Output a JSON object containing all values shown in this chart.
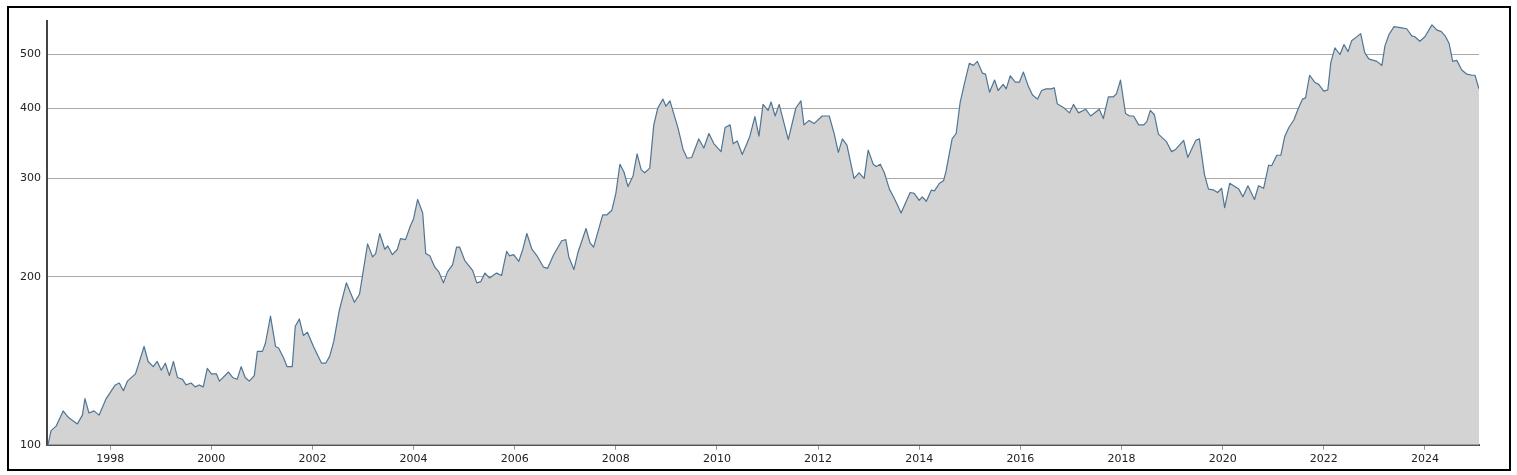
{
  "chart_data": {
    "type": "area",
    "log": "y",
    "grid": "y",
    "marker": "none",
    "legend": false,
    "xlim": [
      1996.75,
      2025.07
    ],
    "xticks": [
      1998,
      2000,
      2002,
      2004,
      2006,
      2008,
      2010,
      2012,
      2014,
      2016,
      2018,
      2020,
      2022,
      2024
    ],
    "ylim": [
      100,
      575
    ],
    "yticks": [
      100,
      200,
      300,
      400,
      500
    ],
    "series": [
      {
        "color": "#4f7595",
        "x": [
          1996.77,
          1996.83,
          1996.93,
          1997.07,
          1997.17,
          1997.35,
          1997.45,
          1997.5,
          1997.58,
          1997.68,
          1997.78,
          1997.92,
          1998.1,
          1998.18,
          1998.26,
          1998.34,
          1998.5,
          1998.67,
          1998.75,
          1998.85,
          1998.93,
          1999.01,
          1999.09,
          1999.17,
          1999.25,
          1999.33,
          1999.43,
          1999.5,
          1999.6,
          1999.68,
          1999.76,
          1999.84,
          1999.92,
          2000,
          2000.1,
          2000.16,
          2000.34,
          2000.42,
          2000.51,
          2000.59,
          2000.67,
          2000.75,
          2000.85,
          2000.91,
          2001.01,
          2001.07,
          2001.17,
          2001.27,
          2001.33,
          2001.43,
          2001.5,
          2001.6,
          2001.66,
          2001.74,
          2001.82,
          2001.9,
          2002.02,
          2002.18,
          2002.26,
          2002.34,
          2002.42,
          2002.53,
          2002.67,
          2002.83,
          2002.93,
          2003.09,
          2003.19,
          2003.25,
          2003.33,
          2003.43,
          2003.49,
          2003.58,
          2003.68,
          2003.74,
          2003.84,
          2003.94,
          2004,
          2004.08,
          2004.18,
          2004.24,
          2004.32,
          2004.42,
          2004.5,
          2004.59,
          2004.67,
          2004.77,
          2004.85,
          2004.91,
          2005.01,
          2005.17,
          2005.25,
          2005.33,
          2005.41,
          2005.5,
          2005.64,
          2005.74,
          2005.84,
          2005.9,
          2005.98,
          2006.08,
          2006.16,
          2006.24,
          2006.34,
          2006.44,
          2006.57,
          2006.65,
          2006.77,
          2006.93,
          2007.01,
          2007.07,
          2007.17,
          2007.25,
          2007.41,
          2007.49,
          2007.56,
          2007.74,
          2007.82,
          2007.92,
          2008,
          2008.08,
          2008.16,
          2008.24,
          2008.34,
          2008.42,
          2008.5,
          2008.57,
          2008.67,
          2008.75,
          2008.83,
          2008.93,
          2008.99,
          2009.07,
          2009.23,
          2009.33,
          2009.41,
          2009.5,
          2009.56,
          2009.64,
          2009.74,
          2009.84,
          2009.94,
          2010.08,
          2010.16,
          2010.26,
          2010.32,
          2010.4,
          2010.5,
          2010.59,
          2010.65,
          2010.75,
          2010.83,
          2010.91,
          2011.01,
          2011.07,
          2011.15,
          2011.23,
          2011.41,
          2011.56,
          2011.66,
          2011.72,
          2011.82,
          2011.92,
          2012.08,
          2012.22,
          2012.32,
          2012.4,
          2012.48,
          2012.57,
          2012.71,
          2012.81,
          2012.91,
          2012.99,
          2013.09,
          2013.15,
          2013.23,
          2013.31,
          2013.41,
          2013.49,
          2013.56,
          2013.64,
          2013.72,
          2013.82,
          2013.9,
          2014,
          2014.06,
          2014.14,
          2014.24,
          2014.3,
          2014.4,
          2014.48,
          2014.53,
          2014.65,
          2014.73,
          2014.81,
          2014.89,
          2014.99,
          2015.07,
          2015.15,
          2015.25,
          2015.31,
          2015.39,
          2015.49,
          2015.56,
          2015.66,
          2015.72,
          2015.8,
          2015.9,
          2015.98,
          2016.06,
          2016.16,
          2016.24,
          2016.34,
          2016.42,
          2016.51,
          2016.61,
          2016.67,
          2016.73,
          2016.85,
          2016.97,
          2017.05,
          2017.15,
          2017.29,
          2017.39,
          2017.56,
          2017.64,
          2017.74,
          2017.84,
          2017.9,
          2017.98,
          2018.08,
          2018.16,
          2018.24,
          2018.34,
          2018.44,
          2018.5,
          2018.57,
          2018.65,
          2018.73,
          2018.89,
          2018.99,
          2019.07,
          2019.23,
          2019.31,
          2019.47,
          2019.54,
          2019.64,
          2019.72,
          2019.82,
          2019.9,
          2019.98,
          2020.04,
          2020.14,
          2020.32,
          2020.4,
          2020.5,
          2020.63,
          2020.71,
          2020.81,
          2020.91,
          2020.97,
          2021.07,
          2021.15,
          2021.23,
          2021.31,
          2021.41,
          2021.49,
          2021.58,
          2021.64,
          2021.72,
          2021.82,
          2021.9,
          2022,
          2022.08,
          2022.14,
          2022.22,
          2022.32,
          2022.4,
          2022.48,
          2022.55,
          2022.63,
          2022.73,
          2022.81,
          2022.89,
          2023.05,
          2023.15,
          2023.21,
          2023.29,
          2023.39,
          2023.54,
          2023.64,
          2023.74,
          2023.8,
          2023.9,
          2024,
          2024.14,
          2024.24,
          2024.32,
          2024.4,
          2024.48,
          2024.55,
          2024.63,
          2024.73,
          2024.83,
          2024.93,
          2024.99,
          2025.07
        ],
        "values": [
          100,
          106,
          108,
          115,
          112,
          109,
          113,
          121,
          114,
          115,
          113,
          121,
          128,
          129,
          125,
          130,
          134,
          150,
          141,
          138,
          141,
          136,
          140,
          133,
          141,
          132,
          131,
          128,
          129,
          127,
          128,
          127,
          137,
          134,
          134,
          130,
          135,
          132,
          131,
          138,
          132,
          130,
          133,
          147,
          147,
          152,
          170,
          150,
          149,
          143,
          138,
          138,
          163,
          168,
          157,
          159,
          150,
          140,
          140,
          144,
          153,
          174,
          195,
          180,
          186,
          229,
          217,
          220,
          239,
          224,
          227,
          219,
          224,
          234,
          233,
          247,
          254,
          275,
          260,
          220,
          218,
          208,
          204,
          195,
          204,
          210,
          226,
          226,
          214,
          205,
          195,
          196,
          203,
          199,
          203,
          201,
          222,
          218,
          219,
          213,
          224,
          239,
          224,
          218,
          208,
          207,
          219,
          232,
          233,
          217,
          206,
          221,
          244,
          230,
          226,
          258,
          258,
          263,
          282,
          318,
          308,
          290,
          303,
          332,
          311,
          307,
          313,
          374,
          401,
          416,
          404,
          413,
          369,
          338,
          326,
          327,
          338,
          353,
          340,
          361,
          346,
          335,
          370,
          374,
          346,
          350,
          331,
          346,
          357,
          387,
          357,
          407,
          397,
          411,
          388,
          407,
          352,
          401,
          413,
          374,
          381,
          376,
          388,
          388,
          360,
          334,
          353,
          344,
          300,
          307,
          300,
          337,
          318,
          315,
          318,
          307,
          287,
          278,
          270,
          260,
          270,
          283,
          282,
          274,
          278,
          273,
          286,
          285,
          294,
          297,
          309,
          353,
          361,
          411,
          442,
          482,
          478,
          486,
          463,
          461,
          428,
          450,
          431,
          442,
          434,
          458,
          446,
          446,
          465,
          438,
          423,
          416,
          431,
          434,
          434,
          436,
          408,
          402,
          393,
          407,
          393,
          399,
          388,
          399,
          384,
          420,
          420,
          425,
          450,
          392,
          388,
          388,
          374,
          374,
          379,
          397,
          390,
          360,
          349,
          335,
          338,
          351,
          327,
          351,
          353,
          305,
          287,
          286,
          283,
          288,
          266,
          294,
          287,
          278,
          291,
          275,
          291,
          288,
          317,
          316,
          330,
          330,
          357,
          370,
          382,
          399,
          416,
          418,
          459,
          446,
          442,
          430,
          432,
          484,
          514,
          500,
          521,
          506,
          529,
          536,
          545,
          504,
          491,
          486,
          478,
          518,
          543,
          561,
          558,
          556,
          540,
          538,
          528,
          538,
          565,
          553,
          550,
          540,
          523,
          486,
          488,
          469,
          461,
          459,
          459,
          434
        ]
      }
    ]
  }
}
